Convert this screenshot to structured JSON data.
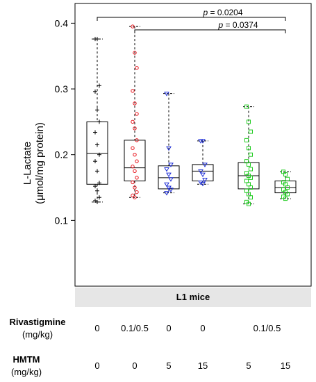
{
  "chart_data": {
    "type": "box",
    "ylabel_main": "L-Lactate",
    "ylabel_unit": "(μmol/mg protein)",
    "yticks": [
      "0.1",
      "0.2",
      "0.3",
      "0.4"
    ],
    "ylim": [
      0.0,
      0.43
    ],
    "strip_label": "L1 mice",
    "rows": [
      {
        "label": "Rivastigmine",
        "unit": "(mg/kg)"
      },
      {
        "label": "HMTM",
        "unit": "(mg/kg)"
      }
    ],
    "groups": [
      {
        "rivastigmine": "0",
        "hmtm": "0",
        "color": "#000000",
        "marker": "plus",
        "min": 0.128,
        "q1": 0.155,
        "median": 0.202,
        "q3": 0.25,
        "max": 0.376,
        "points": [
          0.376,
          0.376,
          0.305,
          0.296,
          0.268,
          0.25,
          0.234,
          0.215,
          0.2,
          0.19,
          0.175,
          0.157,
          0.152,
          0.145,
          0.135,
          0.13,
          0.128
        ]
      },
      {
        "rivastigmine": "0.1/0.5",
        "hmtm": "0",
        "color": "#e8141c",
        "marker": "circle",
        "min": 0.135,
        "q1": 0.16,
        "median": 0.18,
        "q3": 0.222,
        "max": 0.395,
        "points": [
          0.395,
          0.355,
          0.332,
          0.297,
          0.278,
          0.262,
          0.25,
          0.24,
          0.222,
          0.21,
          0.2,
          0.19,
          0.182,
          0.175,
          0.165,
          0.158,
          0.15,
          0.143,
          0.138,
          0.135
        ]
      },
      {
        "rivastigmine": "0",
        "hmtm": "5",
        "color": "#1f2fd6",
        "marker": "triangle",
        "min": 0.142,
        "q1": 0.148,
        "median": 0.165,
        "q3": 0.183,
        "max": 0.293,
        "points": [
          0.293,
          0.21,
          0.185,
          0.178,
          0.17,
          0.163,
          0.155,
          0.15,
          0.147,
          0.142
        ]
      },
      {
        "rivastigmine": "0",
        "hmtm": "15",
        "color": "#1f2fd6",
        "marker": "triangle",
        "min": 0.155,
        "q1": 0.16,
        "median": 0.175,
        "q3": 0.185,
        "max": 0.221,
        "points": [
          0.221,
          0.221,
          0.185,
          0.175,
          0.17,
          0.162,
          0.158,
          0.156
        ]
      },
      {
        "rivastigmine": "0.1/0.5",
        "hmtm": "5",
        "color": "#22cc22",
        "marker": "square",
        "min": 0.125,
        "q1": 0.148,
        "median": 0.168,
        "q3": 0.188,
        "max": 0.273,
        "points": [
          0.273,
          0.25,
          0.235,
          0.222,
          0.21,
          0.2,
          0.19,
          0.185,
          0.178,
          0.172,
          0.168,
          0.165,
          0.16,
          0.155,
          0.15,
          0.145,
          0.14,
          0.135,
          0.128,
          0.125
        ]
      },
      {
        "rivastigmine": "0.1/0.5",
        "hmtm": "15",
        "color": "#22cc22",
        "marker": "square",
        "min": 0.133,
        "q1": 0.142,
        "median": 0.15,
        "q3": 0.16,
        "max": 0.174,
        "points": [
          0.174,
          0.17,
          0.163,
          0.158,
          0.155,
          0.15,
          0.147,
          0.143,
          0.14,
          0.136,
          0.133
        ]
      }
    ],
    "rivastigmine_labels": [
      {
        "text": "0",
        "groups": [
          0
        ]
      },
      {
        "text": "0.1/0.5",
        "groups": [
          1
        ]
      },
      {
        "text": "0",
        "groups": [
          2
        ]
      },
      {
        "text": "0",
        "groups": [
          3
        ]
      },
      {
        "text": "0.1/0.5",
        "groups": [
          4,
          5
        ]
      }
    ],
    "comparisons": [
      {
        "from": 0,
        "to": 5,
        "p_symbol": "p",
        "p_text": " = 0.0204"
      },
      {
        "from": 1,
        "to": 5,
        "p_symbol": "p",
        "p_text": " = 0.0374"
      }
    ]
  }
}
